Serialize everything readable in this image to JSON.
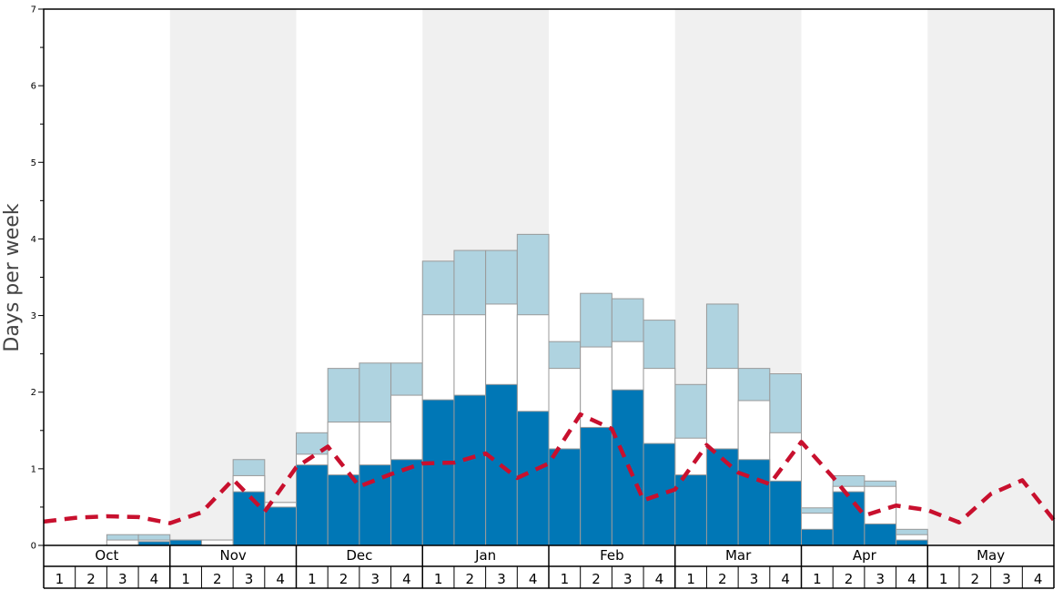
{
  "chart_data": {
    "type": "bar",
    "ylabel": "Days per week",
    "ylim": [
      0,
      7
    ],
    "y_ticks": [
      "0",
      "1",
      "2",
      "3",
      "4",
      "5",
      "6",
      "7"
    ],
    "months": [
      "Oct",
      "Nov",
      "Dec",
      "Jan",
      "Feb",
      "Mar",
      "Apr",
      "May"
    ],
    "week_labels": [
      "1",
      "2",
      "3",
      "4"
    ],
    "categories": [
      "Oct 1",
      "Oct 2",
      "Oct 3",
      "Oct 4",
      "Nov 1",
      "Nov 2",
      "Nov 3",
      "Nov 4",
      "Dec 1",
      "Dec 2",
      "Dec 3",
      "Dec 4",
      "Jan 1",
      "Jan 2",
      "Jan 3",
      "Jan 4",
      "Feb 1",
      "Feb 2",
      "Feb 3",
      "Feb 4",
      "Mar 1",
      "Mar 2",
      "Mar 3",
      "Mar 4",
      "Apr 1",
      "Apr 2",
      "Apr 3",
      "Apr 4",
      "May 1",
      "May 2",
      "May 3",
      "May 4"
    ],
    "series": [
      {
        "key": "dark",
        "color": "#0077b6",
        "values": [
          0,
          0,
          0,
          0.05,
          0.07,
          0,
          0.7,
          0.5,
          1.05,
          0.92,
          1.05,
          1.12,
          1.9,
          1.96,
          2.1,
          1.75,
          1.26,
          1.54,
          2.03,
          1.33,
          0.92,
          1.26,
          1.12,
          0.84,
          0.21,
          0.7,
          0.28,
          0.07,
          0,
          0,
          0,
          0
        ]
      },
      {
        "key": "white",
        "color": "#ffffff",
        "values": [
          0,
          0,
          0.07,
          0.07,
          0.07,
          0.07,
          0.91,
          0.56,
          1.19,
          1.61,
          1.61,
          1.96,
          3.01,
          3.01,
          3.15,
          3.01,
          2.31,
          2.59,
          2.66,
          2.31,
          1.4,
          2.31,
          1.89,
          1.47,
          0.42,
          0.77,
          0.77,
          0.14,
          0,
          0,
          0,
          0
        ]
      },
      {
        "key": "light",
        "color": "#afd3e0",
        "values": [
          0,
          0,
          0.14,
          0.14,
          0.07,
          0.07,
          1.12,
          0.56,
          1.47,
          2.31,
          2.38,
          2.38,
          3.71,
          3.85,
          3.85,
          4.06,
          2.66,
          3.29,
          3.22,
          2.94,
          2.1,
          3.15,
          2.31,
          2.24,
          0.49,
          0.91,
          0.84,
          0.21,
          0,
          0,
          0,
          0
        ]
      }
    ],
    "line": {
      "color": "#c8102e",
      "style": "dashed",
      "x_weeks": [
        0,
        1,
        2,
        3,
        4,
        5,
        6,
        7,
        8,
        9,
        10,
        11,
        12,
        13,
        14,
        15,
        16,
        17,
        18,
        19,
        20,
        21,
        22,
        23,
        24,
        25,
        26,
        27,
        28,
        29,
        30,
        31,
        32
      ],
      "values": [
        0.31,
        0.36,
        0.38,
        0.37,
        0.29,
        0.43,
        0.86,
        0.44,
        1.02,
        1.29,
        0.77,
        0.93,
        1.07,
        1.08,
        1.2,
        0.88,
        1.07,
        1.71,
        1.52,
        0.59,
        0.73,
        1.31,
        0.95,
        0.8,
        1.35,
        0.89,
        0.39,
        0.52,
        0.46,
        0.3,
        0.67,
        0.85,
        0.33
      ]
    },
    "shaded_months": [
      "Nov",
      "Jan",
      "Mar",
      "May"
    ],
    "shade_color": "#f0f0f0"
  }
}
